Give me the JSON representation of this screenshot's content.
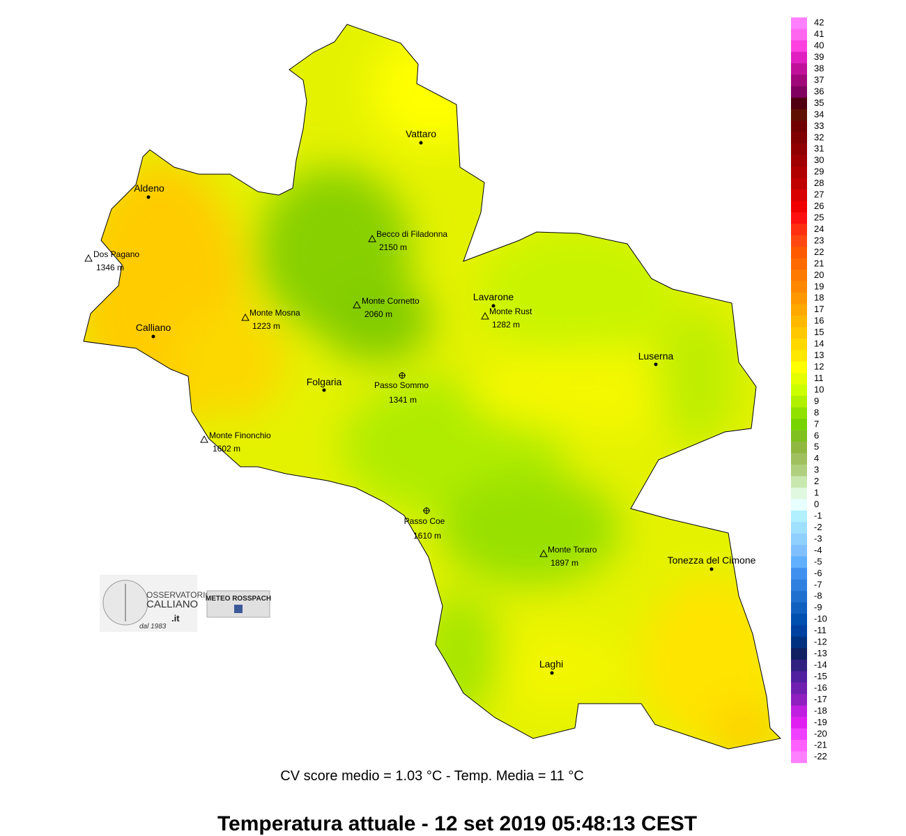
{
  "map": {
    "title": "Temperatura attuale  -  12 set 2019 05:48:13  CEST",
    "subtitle": "CV score medio = 1.03 °C  -  Temp. Media = 11 °C",
    "places": [
      {
        "name": "Vattaro",
        "kind": "town"
      },
      {
        "name": "Aldeno",
        "kind": "town"
      },
      {
        "name": "Dos Pagano",
        "elevation": "1346 m",
        "kind": "peak"
      },
      {
        "name": "Becco di Filadonna",
        "elevation": "2150 m",
        "kind": "peak"
      },
      {
        "name": "Monte Cornetto",
        "elevation": "2060 m",
        "kind": "peak"
      },
      {
        "name": "Monte Mosna",
        "elevation": "1223 m",
        "kind": "peak"
      },
      {
        "name": "Calliano",
        "kind": "town"
      },
      {
        "name": "Lavarone",
        "kind": "town"
      },
      {
        "name": "Monte Rust",
        "elevation": "1282 m",
        "kind": "peak"
      },
      {
        "name": "Luserna",
        "kind": "town"
      },
      {
        "name": "Folgaria",
        "kind": "town"
      },
      {
        "name": "Passo Sommo",
        "elevation": "1341 m",
        "kind": "pass"
      },
      {
        "name": "Monte Finonchio",
        "elevation": "1602 m",
        "kind": "peak"
      },
      {
        "name": "Passo Coe",
        "elevation": "1610 m",
        "kind": "pass"
      },
      {
        "name": "Monte Toraro",
        "elevation": "1897 m",
        "kind": "peak"
      },
      {
        "name": "Tonezza del Cimone",
        "kind": "town"
      },
      {
        "name": "Laghi",
        "kind": "town"
      }
    ],
    "legend": {
      "values": [
        42,
        41,
        40,
        39,
        38,
        37,
        36,
        35,
        34,
        33,
        32,
        31,
        30,
        29,
        28,
        27,
        26,
        25,
        24,
        23,
        22,
        21,
        20,
        19,
        18,
        17,
        16,
        15,
        14,
        13,
        12,
        11,
        10,
        9,
        8,
        7,
        6,
        5,
        4,
        3,
        2,
        1,
        0,
        -1,
        -2,
        -3,
        -4,
        -5,
        -6,
        -7,
        -8,
        -9,
        -10,
        -11,
        -12,
        -13,
        -14,
        -15,
        -16,
        -17,
        -18,
        -19,
        -20,
        -21,
        -22
      ],
      "colors": [
        "#ff80ff",
        "#ff66f0",
        "#ff40e0",
        "#e020c0",
        "#c0109a",
        "#a0087a",
        "#800060",
        "#500010",
        "#601000",
        "#700000",
        "#800000",
        "#900000",
        "#a00000",
        "#b00000",
        "#c00000",
        "#d80000",
        "#f00000",
        "#ff1010",
        "#ff3010",
        "#ff4810",
        "#ff5a00",
        "#ff6a00",
        "#ff7a00",
        "#ff8800",
        "#ff9800",
        "#ffa800",
        "#ffb800",
        "#ffc800",
        "#ffd800",
        "#ffe800",
        "#ffff00",
        "#e6ff00",
        "#ccff00",
        "#b0f000",
        "#90e000",
        "#78d400",
        "#80c020",
        "#90b840",
        "#a0c060",
        "#b0d080",
        "#c8e8b0",
        "#e0f8e0",
        "#e8ffff",
        "#b0f0ff",
        "#a0e0ff",
        "#90d0ff",
        "#80c0ff",
        "#60b0ff",
        "#4090f0",
        "#3080e0",
        "#2070d0",
        "#1060c0",
        "#0050b0",
        "#0040a0",
        "#003080",
        "#102060",
        "#302080",
        "#5020a0",
        "#7020b0",
        "#9020c0",
        "#c020e0",
        "#e020f0",
        "#f040ff",
        "#ff60ff",
        "#ff80ff"
      ]
    },
    "logos": {
      "observatory": [
        "OSSERVATORIO",
        "CALLIANO",
        ".it",
        "dal 1983"
      ],
      "meteo": "METEO ROSSPACH"
    }
  }
}
